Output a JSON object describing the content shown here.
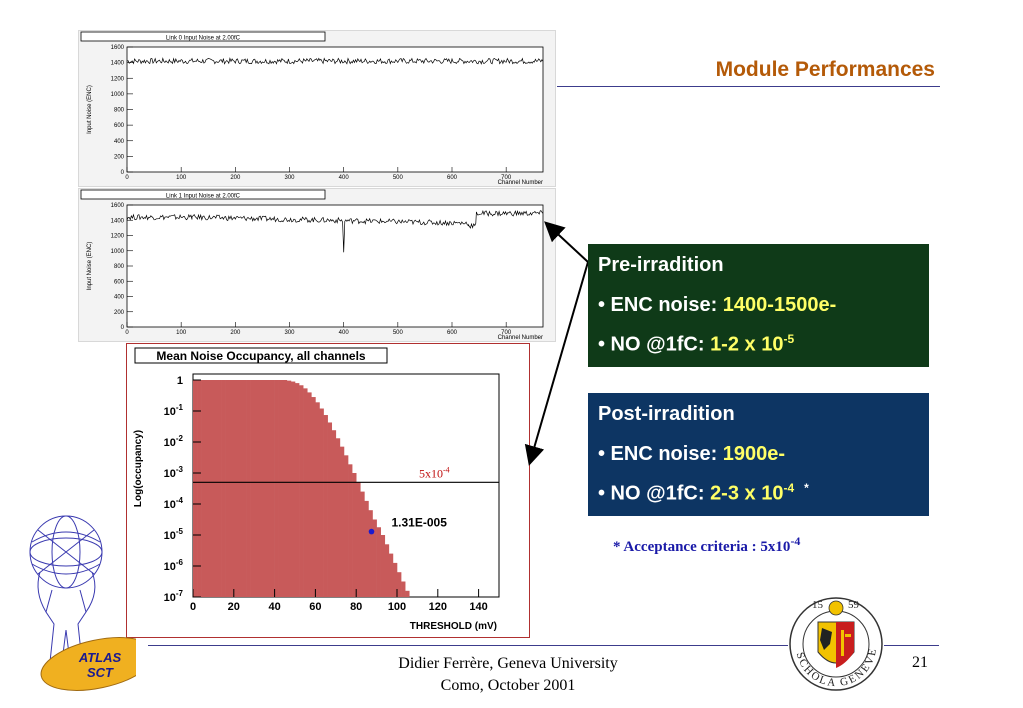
{
  "slide": {
    "title": "Module Performances",
    "footer_line1": "Didier Ferrère, Geneva University",
    "footer_line2": "Como, October 2001",
    "page_number": "21",
    "accent_color": "#b45a08",
    "rule_color": "#3c3c8c"
  },
  "pre_irradiation": {
    "heading": "Pre-irradition",
    "enc_label": "• ENC noise: ",
    "enc_value": "1400-1500e-",
    "no_label": "• NO @1fC: ",
    "no_value": "1-2 x 10",
    "no_exp": "-5",
    "bg_color": "#0f3a18"
  },
  "post_irradiation": {
    "heading": "Post-irradition",
    "enc_label": "• ENC noise: ",
    "enc_value": "1900e-",
    "no_label": "• NO @1fC: ",
    "no_value": "2-3 x 10",
    "no_exp": "-4",
    "asterisk": "*",
    "bg_color": "#0d3563"
  },
  "acceptance": {
    "text": "* Acceptance criteria : 5x10",
    "exp": "-4"
  },
  "logos": {
    "atlas_icon": "atlas-sct-logo-icon",
    "atlas_text1": "ATLAS",
    "atlas_text2": "SCT",
    "geneva_icon": "geneva-university-seal-icon",
    "geneva_year1": "15",
    "geneva_year2": "59",
    "geneva_motto": "SCHOLA GENEVENSIS"
  },
  "chart_data": [
    {
      "type": "line",
      "title": "Link 0 Input Noise at 2.00fC",
      "xlabel": "Channel Number",
      "ylabel": "Input Noise (ENC)",
      "xlim": [
        0,
        768
      ],
      "ylim": [
        0,
        1600
      ],
      "x_ticks": [
        0,
        100,
        200,
        300,
        400,
        500,
        600,
        700
      ],
      "y_ticks": [
        0,
        200,
        400,
        600,
        800,
        1000,
        1200,
        1400,
        1600
      ],
      "segments": [
        {
          "x": [
            0,
            768
          ],
          "y": [
            1420,
            1420
          ]
        }
      ],
      "dips": []
    },
    {
      "type": "line",
      "title": "Link 1 Input Noise at 2.00fC",
      "xlabel": "Channel Number",
      "ylabel": "Input Noise (ENC)",
      "xlim": [
        0,
        768
      ],
      "ylim": [
        0,
        1600
      ],
      "x_ticks": [
        0,
        100,
        200,
        300,
        400,
        500,
        600,
        700
      ],
      "y_ticks": [
        0,
        200,
        400,
        600,
        800,
        1000,
        1200,
        1400,
        1600
      ],
      "segments": [
        {
          "x": [
            0,
            120
          ],
          "y": [
            1440,
            1440
          ]
        },
        {
          "x": [
            120,
            630
          ],
          "y": [
            1440,
            1360
          ]
        },
        {
          "x": [
            630,
            645
          ],
          "y": [
            1330,
            1330
          ]
        },
        {
          "x": [
            645,
            768
          ],
          "y": [
            1490,
            1490
          ]
        }
      ],
      "dips": [
        {
          "x": 400,
          "y": 980
        }
      ]
    },
    {
      "type": "bar",
      "title": "Mean Noise Occupancy, all channels",
      "xlabel": "THRESHOLD (mV)",
      "ylabel": "Log(occupancy)",
      "xlim": [
        0,
        150
      ],
      "y_log_range": [
        -7,
        0
      ],
      "x_ticks": [
        "0",
        "20",
        "40",
        "60",
        "80",
        "100",
        "120",
        "140"
      ],
      "y_ticks": [
        {
          "base": "1",
          "exp": ""
        },
        {
          "base": "10",
          "exp": "-1"
        },
        {
          "base": "10",
          "exp": "-2"
        },
        {
          "base": "10",
          "exp": "-3"
        },
        {
          "base": "10",
          "exp": "-4"
        },
        {
          "base": "10",
          "exp": "-5"
        },
        {
          "base": "10",
          "exp": "-6"
        },
        {
          "base": "10",
          "exp": "-7"
        }
      ],
      "bin_width": 2,
      "log_values": [
        0,
        0,
        0,
        0,
        0,
        0,
        0,
        0,
        0,
        0,
        0,
        0,
        0,
        0,
        0,
        0,
        0,
        0,
        0,
        0,
        0,
        0,
        0,
        -0.02,
        -0.05,
        -0.1,
        -0.17,
        -0.27,
        -0.4,
        -0.55,
        -0.72,
        -0.92,
        -1.13,
        -1.37,
        -1.62,
        -1.88,
        -2.15,
        -2.43,
        -2.72,
        -3.0,
        -3.3,
        -3.6,
        -3.9,
        -4.2,
        -4.5,
        -4.75,
        -5.0,
        -5.3,
        -5.6,
        -5.9,
        -6.2,
        -6.5,
        -6.8,
        -7.0,
        -7.0,
        -7.0
      ],
      "criterion_line": {
        "log_y": -3.3,
        "label": "5x10",
        "label_exp": "-4"
      },
      "marker": {
        "x": 87.5,
        "log_y": -4.89,
        "label": "1.31E-005"
      },
      "fill_color": "#c85a5a"
    }
  ]
}
